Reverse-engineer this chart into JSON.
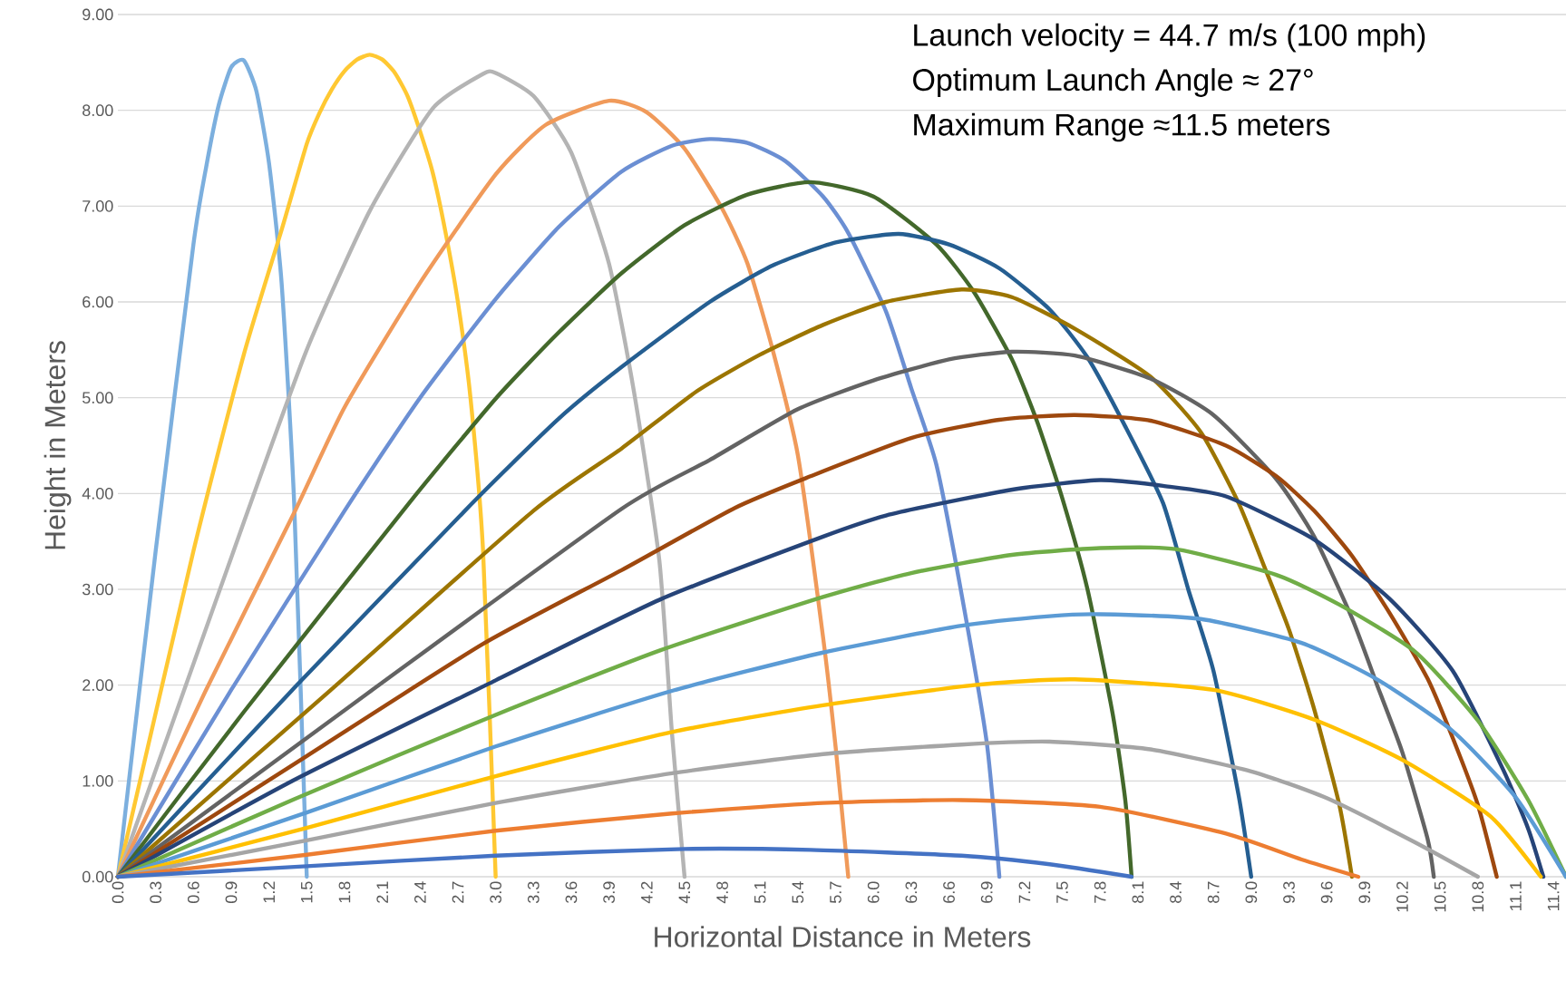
{
  "chart_data": {
    "type": "line",
    "xlabel": "Horizontal Distance in Meters",
    "ylabel": "Height in Meters",
    "annotations": [
      "Launch velocity = 44.7 m/s (100 mph)",
      "Optimum Launch Angle ≈ 27°",
      "Maximum Range ≈11.5 meters"
    ],
    "xlim": [
      0,
      11.5
    ],
    "ylim": [
      0,
      9
    ],
    "xticks": [
      {
        "value": 0,
        "label": "0.0"
      },
      0.3,
      0.6,
      0.9,
      1.2,
      1.5,
      1.8,
      2.1,
      2.4,
      2.7,
      {
        "value": 3,
        "label": "3.0"
      },
      3.3,
      3.6,
      3.9,
      4.2,
      4.5,
      4.8,
      5.1,
      5.4,
      5.7,
      {
        "value": 6,
        "label": "6.0"
      },
      6.3,
      6.6,
      6.9,
      7.2,
      7.5,
      7.8,
      8.1,
      8.4,
      8.7,
      {
        "value": 9,
        "label": "9.0"
      },
      9.3,
      9.6,
      9.9,
      10.2,
      10.5,
      10.8,
      11.1,
      11.4
    ],
    "yticks": [
      {
        "value": 0,
        "label": "0.00"
      },
      {
        "value": 1,
        "label": "1.00"
      },
      {
        "value": 2,
        "label": "2.00"
      },
      {
        "value": 3,
        "label": "3.00"
      },
      {
        "value": 4,
        "label": "4.00"
      },
      {
        "value": 5,
        "label": "5.00"
      },
      {
        "value": 6,
        "label": "6.00"
      },
      {
        "value": 7,
        "label": "7.00"
      },
      {
        "value": 8,
        "label": "8.00"
      },
      {
        "value": 9,
        "label": "9.00"
      }
    ],
    "grid": "y",
    "marker": "none",
    "line_style": "solid",
    "series": [
      {
        "color": "#7cafde",
        "x": [
          0,
          0.3,
          0.6,
          0.7,
          0.8,
          0.9,
          1.0,
          1.1,
          1.2,
          1.3,
          1.4,
          1.5
        ],
        "values": [
          0,
          3.4,
          6.6,
          7.4,
          8.05,
          8.45,
          8.52,
          8.2,
          7.45,
          6.2,
          3.9,
          0
        ]
      },
      {
        "color": "#ffc832",
        "x": [
          0,
          0.6,
          1.0,
          1.3,
          1.5,
          1.6,
          1.7,
          1.8,
          1.9,
          2.0,
          2.1,
          2.2,
          2.3,
          2.4,
          2.5,
          2.6,
          2.7,
          2.8,
          2.9,
          3.0
        ],
        "values": [
          0,
          3.4,
          5.45,
          6.75,
          7.65,
          7.97,
          8.22,
          8.41,
          8.53,
          8.58,
          8.53,
          8.39,
          8.15,
          7.78,
          7.35,
          6.74,
          6.0,
          5.0,
          3.4,
          0
        ]
      },
      {
        "color": "#b4b4b4",
        "x": [
          0,
          1.0,
          1.5,
          2.0,
          2.5,
          2.9,
          3.0,
          3.3,
          3.6,
          3.9,
          4.1,
          4.3,
          4.4,
          4.5
        ],
        "values": [
          0,
          3.7,
          5.5,
          6.95,
          8.02,
          8.38,
          8.39,
          8.15,
          7.56,
          6.4,
          5.05,
          3.3,
          1.5,
          0
        ]
      },
      {
        "color": "#f09a5a",
        "x": [
          0,
          0.7,
          1.4,
          1.8,
          2.4,
          3.0,
          3.4,
          3.9,
          4.2,
          4.5,
          4.8,
          5.0,
          5.2,
          5.4,
          5.6,
          5.7,
          5.8
        ],
        "values": [
          0,
          1.95,
          3.8,
          4.9,
          6.2,
          7.33,
          7.85,
          8.1,
          7.98,
          7.6,
          6.97,
          6.4,
          5.5,
          4.4,
          2.5,
          1.35,
          0
        ]
      },
      {
        "color": "#6b8fd3",
        "x": [
          0,
          0.9,
          1.8,
          2.4,
          3.0,
          3.5,
          4.0,
          4.4,
          4.7,
          5.0,
          5.3,
          5.6,
          5.8,
          6.1,
          6.3,
          6.5,
          6.7,
          6.9,
          7.0
        ],
        "values": [
          0,
          1.95,
          3.82,
          5.0,
          6.03,
          6.78,
          7.36,
          7.63,
          7.7,
          7.66,
          7.47,
          7.1,
          6.72,
          5.9,
          5.1,
          4.3,
          2.95,
          1.4,
          0
        ]
      },
      {
        "color": "#43682b",
        "x": [
          0,
          1.0,
          2.3,
          3.0,
          3.5,
          4.0,
          4.5,
          5.0,
          5.5,
          6.0,
          6.5,
          6.8,
          7.1,
          7.3,
          7.5,
          7.7,
          7.9,
          8.0,
          8.05
        ],
        "values": [
          0,
          1.72,
          3.88,
          4.99,
          5.68,
          6.3,
          6.8,
          7.12,
          7.25,
          7.1,
          6.6,
          6.1,
          5.4,
          4.75,
          3.95,
          3.0,
          1.7,
          0.8,
          0
        ]
      },
      {
        "color": "#255e91",
        "x": [
          0,
          1.4,
          2.8,
          3.5,
          4.0,
          4.7,
          5.2,
          5.7,
          6.2,
          6.6,
          7.0,
          7.4,
          7.7,
          8.0,
          8.3,
          8.5,
          8.7,
          8.9,
          9.0
        ],
        "values": [
          0,
          1.97,
          3.88,
          4.78,
          5.32,
          6.0,
          6.38,
          6.62,
          6.71,
          6.6,
          6.35,
          5.92,
          5.42,
          4.7,
          3.9,
          3.0,
          2.15,
          0.85,
          0
        ]
      },
      {
        "color": "#9c7500",
        "x": [
          0,
          1.7,
          3.3,
          4.0,
          4.6,
          5.1,
          5.6,
          6.1,
          6.7,
          7.1,
          7.6,
          8.2,
          8.6,
          8.9,
          9.1,
          9.3,
          9.5,
          9.7,
          9.8
        ],
        "values": [
          0,
          1.96,
          3.82,
          4.47,
          5.07,
          5.45,
          5.76,
          6.0,
          6.13,
          6.05,
          5.72,
          5.22,
          4.64,
          3.9,
          3.25,
          2.58,
          1.75,
          0.75,
          0
        ]
      },
      {
        "color": "#636363",
        "x": [
          0,
          2.0,
          4.0,
          4.7,
          5.4,
          6.0,
          6.6,
          7.1,
          7.6,
          8.2,
          8.7,
          9.2,
          9.5,
          9.8,
          10.0,
          10.2,
          10.4,
          10.45
        ],
        "values": [
          0,
          1.93,
          3.84,
          4.35,
          4.88,
          5.18,
          5.4,
          5.48,
          5.44,
          5.2,
          4.82,
          4.15,
          3.55,
          2.7,
          2.0,
          1.3,
          0.4,
          0
        ]
      },
      {
        "color": "#9e480e",
        "x": [
          0,
          1.5,
          2.9,
          4.0,
          4.9,
          5.5,
          6.3,
          7.0,
          7.6,
          8.2,
          8.8,
          9.2,
          9.5,
          9.8,
          10.1,
          10.4,
          10.6,
          10.8,
          10.95
        ],
        "values": [
          0,
          1.26,
          2.43,
          3.2,
          3.85,
          4.18,
          4.58,
          4.77,
          4.82,
          4.76,
          4.5,
          4.18,
          3.82,
          3.35,
          2.75,
          2.07,
          1.45,
          0.75,
          0
        ]
      },
      {
        "color": "#264478",
        "x": [
          0,
          1.4,
          3.0,
          4.3,
          5.6,
          6.1,
          6.7,
          7.2,
          7.8,
          8.3,
          8.8,
          9.5,
          10.1,
          10.6,
          11.0,
          11.2,
          11.32
        ],
        "values": [
          0,
          1.01,
          2.05,
          2.89,
          3.55,
          3.77,
          3.94,
          4.06,
          4.14,
          4.08,
          3.97,
          3.52,
          2.9,
          2.15,
          1.12,
          0.5,
          0
        ]
      },
      {
        "color": "#70ad47",
        "x": [
          0,
          1.4,
          3.0,
          4.3,
          5.6,
          6.3,
          7.1,
          7.8,
          8.4,
          9.2,
          9.7,
          10.3,
          10.8,
          11.2,
          11.5
        ],
        "values": [
          0,
          0.81,
          1.69,
          2.36,
          2.92,
          3.17,
          3.36,
          3.43,
          3.42,
          3.15,
          2.84,
          2.35,
          1.63,
          0.8,
          0
        ]
      },
      {
        "color": "#5b9bd5",
        "x": [
          0,
          1.5,
          3.0,
          4.4,
          5.6,
          6.7,
          7.4,
          7.8,
          8.6,
          9.4,
          10.0,
          10.6,
          11.1,
          11.5
        ],
        "values": [
          0,
          0.67,
          1.36,
          1.94,
          2.34,
          2.62,
          2.72,
          2.74,
          2.69,
          2.44,
          2.06,
          1.52,
          0.83,
          0
        ]
      },
      {
        "color": "#ffc000",
        "x": [
          0,
          1.5,
          3.0,
          4.4,
          5.6,
          6.8,
          7.6,
          8.7,
          9.5,
          10.2,
          10.9,
          11.3
        ],
        "values": [
          0,
          0.51,
          1.05,
          1.51,
          1.79,
          2.0,
          2.06,
          1.95,
          1.64,
          1.22,
          0.63,
          0
        ]
      },
      {
        "color": "#a5a5a5",
        "x": [
          0,
          1.5,
          3.0,
          4.4,
          5.6,
          6.7,
          7.4,
          8.2,
          9.0,
          9.6,
          10.3,
          10.8
        ],
        "values": [
          0,
          0.38,
          0.77,
          1.08,
          1.28,
          1.38,
          1.41,
          1.33,
          1.1,
          0.82,
          0.36,
          0
        ]
      },
      {
        "color": "#ed7d31",
        "x": [
          0,
          1.5,
          3.0,
          4.4,
          5.6,
          6.7,
          7.8,
          8.8,
          9.4,
          9.85
        ],
        "values": [
          0,
          0.23,
          0.48,
          0.66,
          0.77,
          0.8,
          0.73,
          0.45,
          0.18,
          0
        ]
      },
      {
        "color": "#4472c4",
        "x": [
          0,
          1.5,
          3.0,
          4.5,
          5.5,
          6.7,
          7.4,
          8.05
        ],
        "values": [
          0,
          0.11,
          0.22,
          0.29,
          0.28,
          0.22,
          0.13,
          0
        ]
      }
    ]
  }
}
